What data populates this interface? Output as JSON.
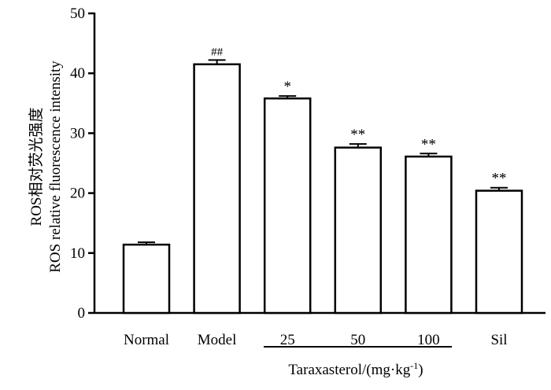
{
  "chart_data": {
    "type": "bar",
    "categories": [
      "Normal",
      "Model",
      "25",
      "50",
      "100",
      "Sil"
    ],
    "values": [
      11.4,
      41.5,
      35.8,
      27.6,
      26.1,
      20.4
    ],
    "errors": [
      0.4,
      0.7,
      0.4,
      0.6,
      0.5,
      0.5
    ],
    "significance": [
      "",
      "##",
      "*",
      "**",
      "**",
      "**"
    ],
    "title": "",
    "ylabel_line1": "ROS相对荧光强度",
    "ylabel_line2": "ROS relative fluorescence intensity",
    "group_label_text": "Taraxasterol/(mg·kg",
    "group_label_sup": "-1",
    "group_label_close": ")",
    "ylim": [
      0,
      50
    ],
    "yticks": [
      "0",
      "10",
      "20",
      "30",
      "40",
      "50"
    ],
    "grid": false,
    "legend": "none",
    "bar_fill": "#ffffff",
    "bar_stroke": "#000000"
  }
}
